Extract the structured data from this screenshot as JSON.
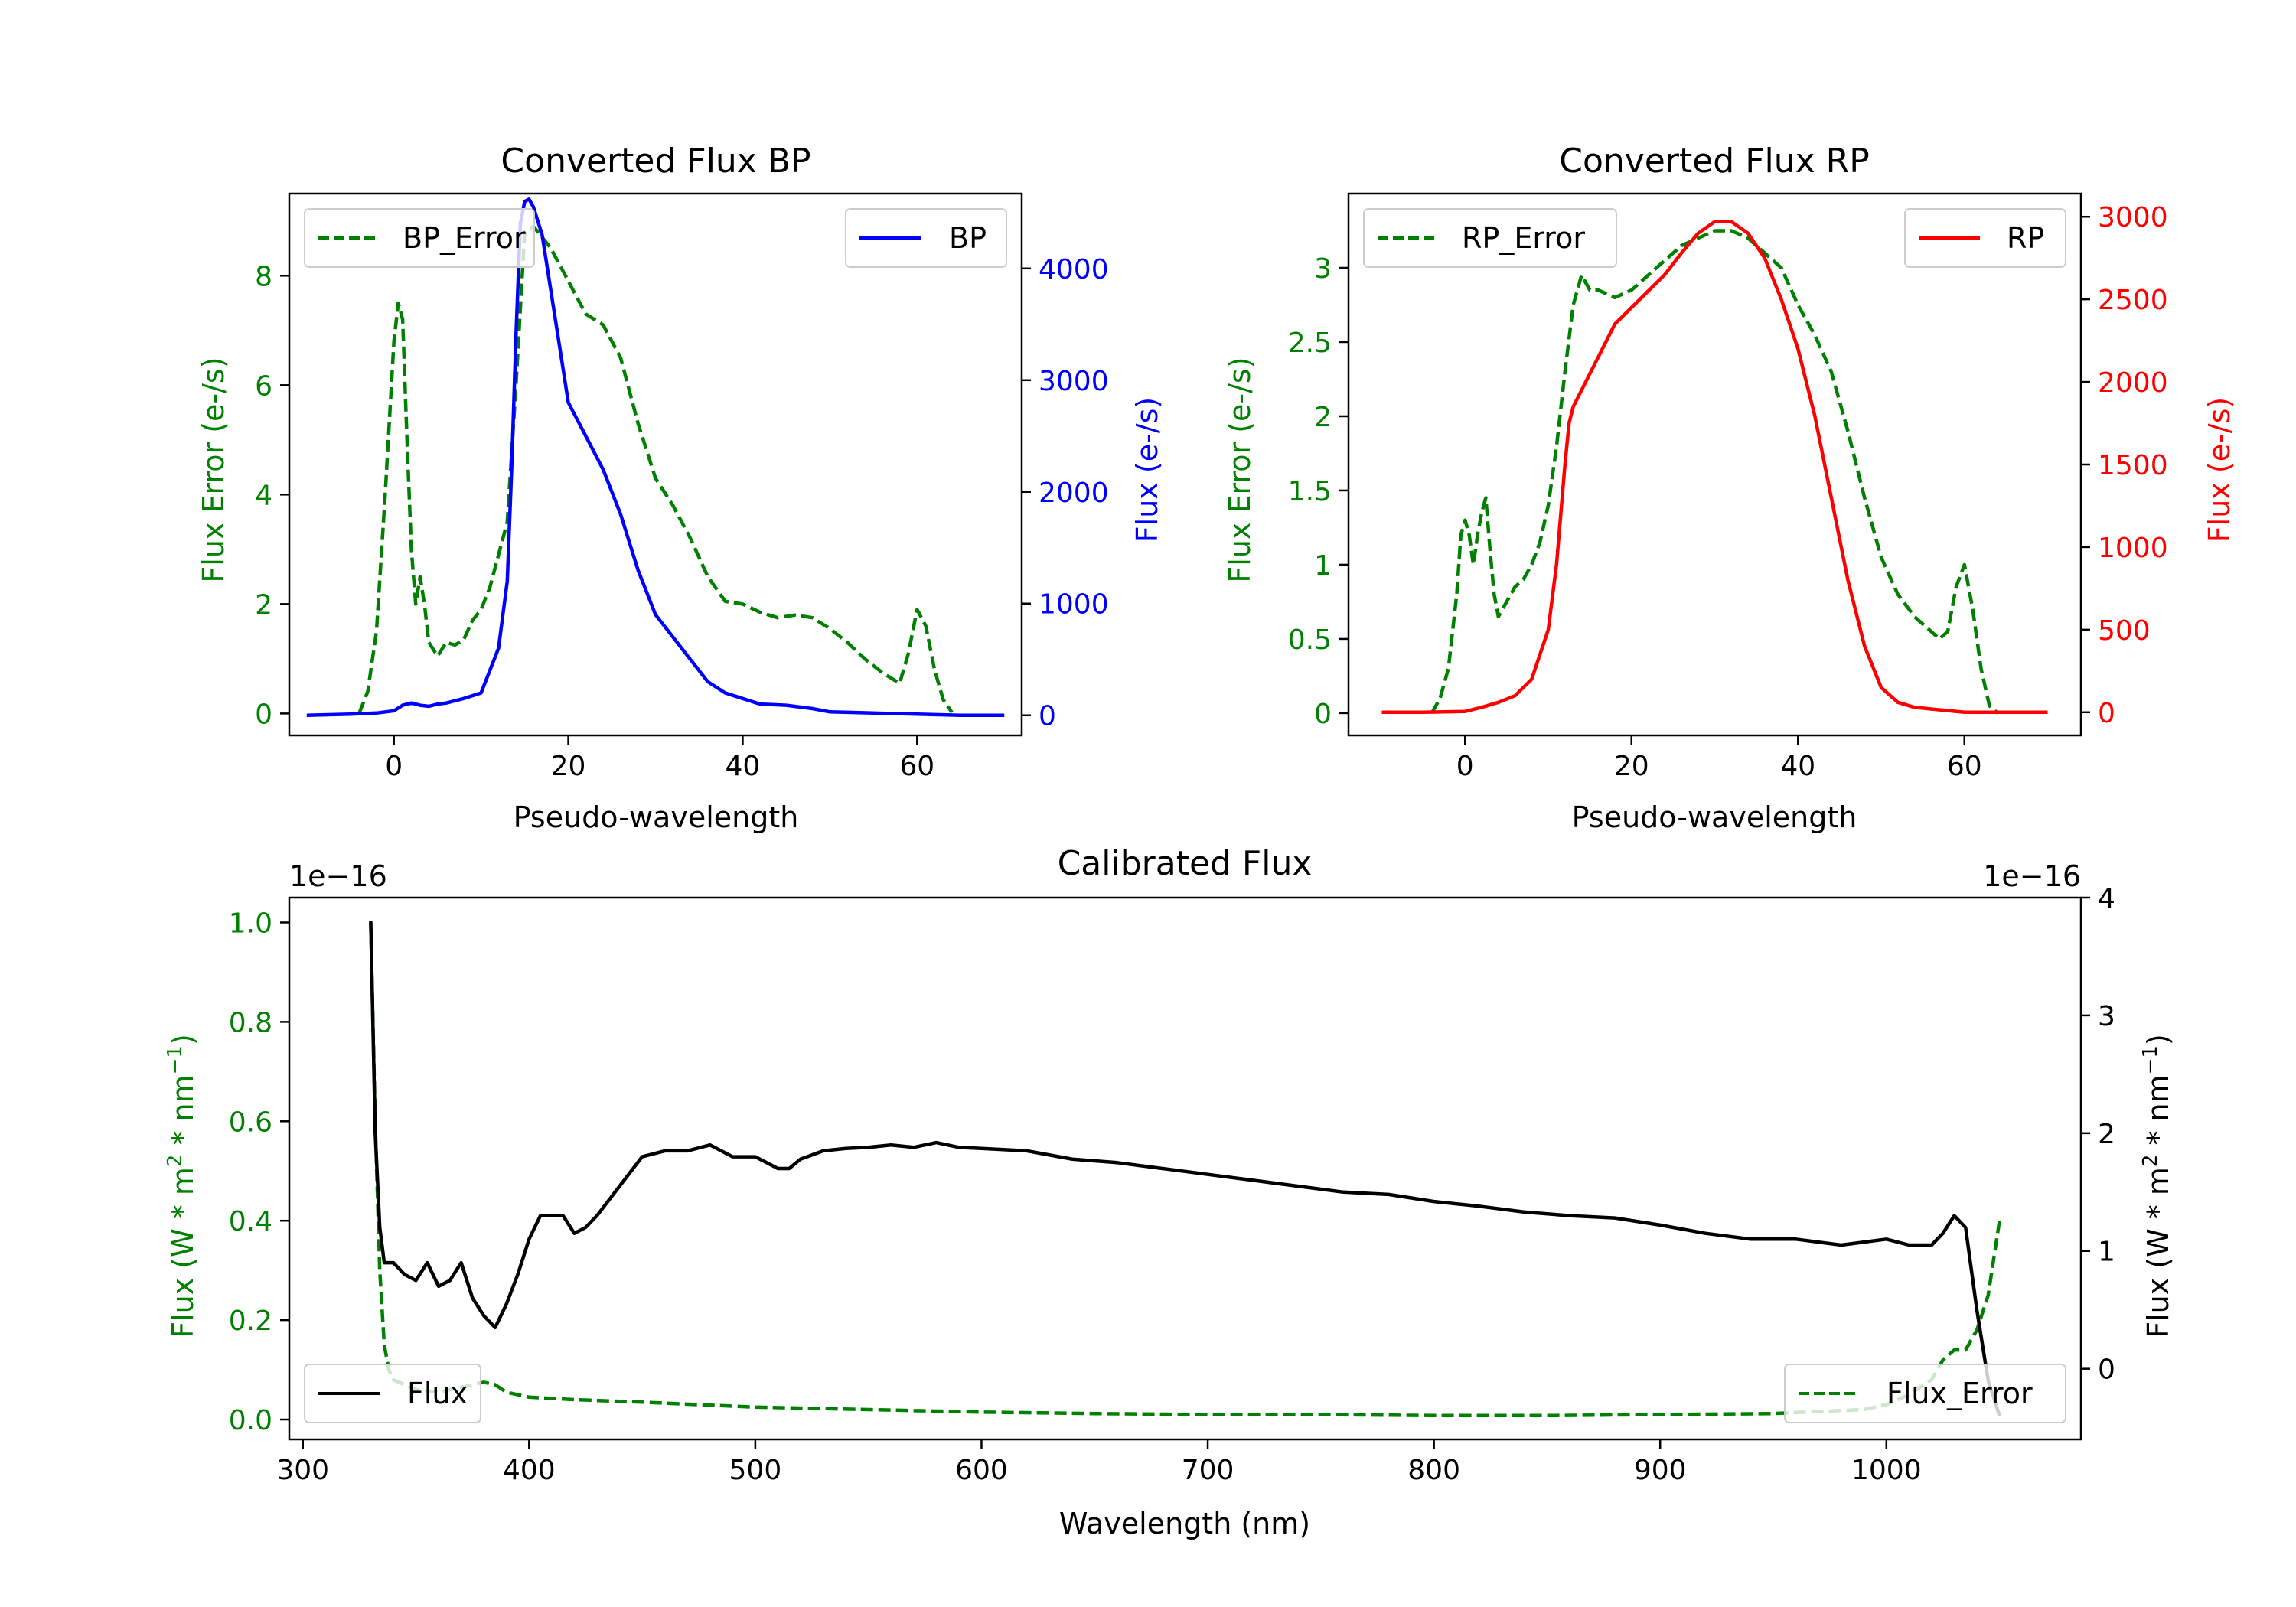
{
  "colors": {
    "green": "#008000",
    "blue": "#0000ff",
    "red": "#ff0000",
    "black": "#000000"
  },
  "chart_data": [
    {
      "id": "bp",
      "type": "line",
      "title": "Converted Flux BP",
      "xlabel": "Pseudo-wavelength",
      "ylabel_left": "Flux Error (e-/s)",
      "ylabel_right": "Flux (e-/s)",
      "xlim": [
        -12,
        72
      ],
      "ylim_left": [
        -0.4,
        9.5
      ],
      "ylim_right": [
        -180,
        4670
      ],
      "xticks": [
        0,
        20,
        40,
        60
      ],
      "yticks_left": [
        0,
        2,
        4,
        6,
        8
      ],
      "yticks_right": [
        0,
        1000,
        2000,
        3000,
        4000
      ],
      "series": [
        {
          "name": "BP_Error",
          "axis": "left",
          "style": "dashed",
          "color": "green",
          "x": [
            -4,
            -3,
            -2,
            -1,
            0,
            0.5,
            1,
            1.5,
            2,
            2.5,
            3,
            3.5,
            4,
            5,
            6,
            7,
            8,
            9,
            10,
            11,
            12,
            13,
            14,
            15,
            16,
            17,
            18,
            20,
            22,
            24,
            26,
            28,
            30,
            32,
            34,
            36,
            38,
            40,
            42,
            44,
            46,
            48,
            50,
            52,
            54,
            56,
            58,
            59,
            60,
            61,
            62,
            63,
            64
          ],
          "y": [
            0,
            0.4,
            1.5,
            4.0,
            6.8,
            7.5,
            7.2,
            5.0,
            3.0,
            2.0,
            2.5,
            2.0,
            1.3,
            1.05,
            1.3,
            1.25,
            1.35,
            1.7,
            1.9,
            2.3,
            2.9,
            3.5,
            6.0,
            8.8,
            8.9,
            8.7,
            8.5,
            7.9,
            7.3,
            7.1,
            6.5,
            5.3,
            4.3,
            3.8,
            3.2,
            2.5,
            2.05,
            2.0,
            1.85,
            1.75,
            1.8,
            1.75,
            1.55,
            1.3,
            1.0,
            0.75,
            0.55,
            1.1,
            1.9,
            1.6,
            0.8,
            0.25,
            0.02
          ]
        },
        {
          "name": "BP",
          "axis": "right",
          "style": "solid",
          "color": "blue",
          "x": [
            -10,
            -5,
            -2,
            0,
            1,
            2,
            3,
            4,
            5,
            6,
            8,
            10,
            11,
            12,
            13,
            13.5,
            14,
            14.5,
            15,
            15.5,
            16,
            17,
            18,
            20,
            22,
            24,
            26,
            28,
            30,
            32,
            34,
            36,
            38,
            40,
            42,
            45,
            48,
            50,
            55,
            60,
            65,
            70
          ],
          "y": [
            0,
            10,
            20,
            40,
            90,
            110,
            90,
            80,
            100,
            110,
            150,
            200,
            400,
            600,
            1200,
            2200,
            3400,
            4400,
            4600,
            4620,
            4550,
            4300,
            3800,
            2800,
            2500,
            2200,
            1800,
            1300,
            900,
            700,
            500,
            300,
            200,
            150,
            100,
            90,
            60,
            30,
            20,
            10,
            0,
            0
          ]
        }
      ],
      "legend": [
        {
          "label": "BP_Error",
          "position": "upper-left"
        },
        {
          "label": "BP",
          "position": "upper-right"
        }
      ]
    },
    {
      "id": "rp",
      "type": "line",
      "title": "Converted Flux RP",
      "xlabel": "Pseudo-wavelength",
      "ylabel_left": "Flux Error (e-/s)",
      "ylabel_right": "Flux (e-/s)",
      "xlim": [
        -14,
        74
      ],
      "ylim_left": [
        -0.15,
        3.5
      ],
      "ylim_right": [
        -140,
        3140
      ],
      "xticks": [
        0,
        20,
        40,
        60
      ],
      "yticks_left": [
        0.0,
        0.5,
        1.0,
        1.5,
        2.0,
        2.5,
        3.0
      ],
      "yticks_right": [
        0,
        500,
        1000,
        1500,
        2000,
        2500,
        3000
      ],
      "series": [
        {
          "name": "RP_Error",
          "axis": "left",
          "style": "dashed",
          "color": "green",
          "x": [
            -4,
            -3,
            -2,
            -1,
            -0.5,
            0,
            0.5,
            1,
            1.5,
            2,
            2.5,
            3,
            3.5,
            4,
            4.5,
            5,
            6,
            7,
            8,
            9,
            10,
            11,
            12,
            13,
            14,
            15,
            16,
            18,
            20,
            22,
            24,
            26,
            28,
            30,
            32,
            34,
            36,
            38,
            40,
            42,
            44,
            46,
            48,
            50,
            52,
            54,
            56,
            57,
            58,
            59,
            60,
            61,
            62,
            63,
            64
          ],
          "y": [
            0,
            0.1,
            0.3,
            0.8,
            1.2,
            1.3,
            1.2,
            1.0,
            1.2,
            1.35,
            1.45,
            1.1,
            0.8,
            0.65,
            0.7,
            0.75,
            0.85,
            0.9,
            1.0,
            1.15,
            1.4,
            1.8,
            2.3,
            2.75,
            2.95,
            2.85,
            2.85,
            2.8,
            2.85,
            2.95,
            3.05,
            3.15,
            3.2,
            3.25,
            3.25,
            3.2,
            3.1,
            3.0,
            2.75,
            2.55,
            2.3,
            1.9,
            1.45,
            1.05,
            0.8,
            0.65,
            0.55,
            0.5,
            0.55,
            0.85,
            1.0,
            0.7,
            0.3,
            0.05,
            0
          ]
        },
        {
          "name": "RP",
          "axis": "right",
          "style": "solid",
          "color": "red",
          "x": [
            -10,
            -5,
            0,
            2,
            4,
            6,
            8,
            10,
            11,
            12,
            12.5,
            13,
            14,
            16,
            18,
            20,
            22,
            24,
            26,
            28,
            30,
            32,
            34,
            36,
            38,
            40,
            42,
            44,
            46,
            48,
            50,
            52,
            54,
            56,
            58,
            60,
            65,
            70
          ],
          "y": [
            0,
            0,
            5,
            30,
            60,
            100,
            200,
            500,
            900,
            1500,
            1750,
            1850,
            1950,
            2150,
            2350,
            2450,
            2550,
            2650,
            2780,
            2900,
            2970,
            2970,
            2900,
            2750,
            2500,
            2200,
            1800,
            1300,
            800,
            400,
            150,
            60,
            30,
            20,
            10,
            0,
            0,
            0
          ]
        }
      ],
      "legend": [
        {
          "label": "RP_Error",
          "position": "upper-left"
        },
        {
          "label": "RP",
          "position": "upper-right"
        }
      ]
    },
    {
      "id": "cal",
      "type": "line",
      "title": "Calibrated Flux",
      "xlabel": "Wavelength (nm)",
      "ylabel_left": "Flux (W * m",
      "ylabel_left_sup1": "2",
      "ylabel_left_mid": " * nm",
      "ylabel_left_sup2": "−1",
      "ylabel_left_end": ")",
      "ylabel_right": "Flux (W * m",
      "ylabel_right_sup1": "2",
      "ylabel_right_mid": " * nm",
      "ylabel_right_sup2": "−1",
      "ylabel_right_end": ")",
      "offset_left": "1e−16",
      "offset_right": "1e−16",
      "xlim": [
        294,
        1086
      ],
      "ylim_left": [
        -0.04,
        1.05
      ],
      "ylim_right": [
        -0.6,
        4.0
      ],
      "xticks": [
        300,
        400,
        500,
        600,
        700,
        800,
        900,
        1000
      ],
      "yticks_left": [
        "0.0",
        "0.2",
        "0.4",
        "0.6",
        "0.8",
        "1.0"
      ],
      "yticks_left_values": [
        0.0,
        0.2,
        0.4,
        0.6,
        0.8,
        1.0
      ],
      "yticks_right": [
        0,
        1,
        2,
        3,
        4
      ],
      "series": [
        {
          "name": "Flux_Error",
          "axis": "left",
          "style": "dashed",
          "color": "green",
          "x": [
            330,
            332,
            334,
            336,
            338,
            340,
            345,
            350,
            360,
            370,
            380,
            385,
            390,
            400,
            420,
            450,
            500,
            550,
            600,
            650,
            700,
            750,
            800,
            850,
            900,
            950,
            990,
            1000,
            1010,
            1020,
            1025,
            1030,
            1035,
            1040,
            1045,
            1050
          ],
          "y": [
            1.0,
            0.6,
            0.3,
            0.15,
            0.1,
            0.08,
            0.07,
            0.06,
            0.055,
            0.065,
            0.075,
            0.07,
            0.055,
            0.045,
            0.04,
            0.035,
            0.025,
            0.02,
            0.015,
            0.012,
            0.01,
            0.01,
            0.008,
            0.008,
            0.01,
            0.012,
            0.02,
            0.03,
            0.05,
            0.08,
            0.12,
            0.14,
            0.14,
            0.18,
            0.25,
            0.4
          ]
        },
        {
          "name": "Flux",
          "axis": "right",
          "style": "solid",
          "color": "black",
          "x": [
            330,
            332,
            334,
            336,
            340,
            345,
            350,
            355,
            360,
            365,
            370,
            375,
            380,
            385,
            390,
            395,
            400,
            405,
            410,
            415,
            420,
            425,
            430,
            440,
            450,
            460,
            470,
            480,
            490,
            500,
            510,
            515,
            520,
            530,
            540,
            550,
            560,
            570,
            580,
            590,
            600,
            620,
            640,
            660,
            680,
            700,
            720,
            740,
            760,
            780,
            800,
            820,
            840,
            860,
            880,
            900,
            920,
            940,
            960,
            980,
            1000,
            1010,
            1020,
            1025,
            1030,
            1035,
            1040,
            1045,
            1050
          ],
          "y": [
            3.8,
            2.0,
            1.2,
            0.9,
            0.9,
            0.8,
            0.75,
            0.9,
            0.7,
            0.75,
            0.9,
            0.6,
            0.45,
            0.35,
            0.55,
            0.8,
            1.1,
            1.3,
            1.3,
            1.3,
            1.15,
            1.2,
            1.3,
            1.55,
            1.8,
            1.85,
            1.85,
            1.9,
            1.8,
            1.8,
            1.7,
            1.7,
            1.78,
            1.85,
            1.87,
            1.88,
            1.9,
            1.88,
            1.92,
            1.88,
            1.87,
            1.85,
            1.78,
            1.75,
            1.7,
            1.65,
            1.6,
            1.55,
            1.5,
            1.48,
            1.42,
            1.38,
            1.33,
            1.3,
            1.28,
            1.22,
            1.15,
            1.1,
            1.1,
            1.05,
            1.1,
            1.05,
            1.05,
            1.15,
            1.3,
            1.2,
            0.5,
            -0.1,
            -0.4
          ]
        }
      ],
      "legend": [
        {
          "label": "Flux",
          "position": "lower-left"
        },
        {
          "label": "Flux_Error",
          "position": "lower-right"
        }
      ]
    }
  ]
}
